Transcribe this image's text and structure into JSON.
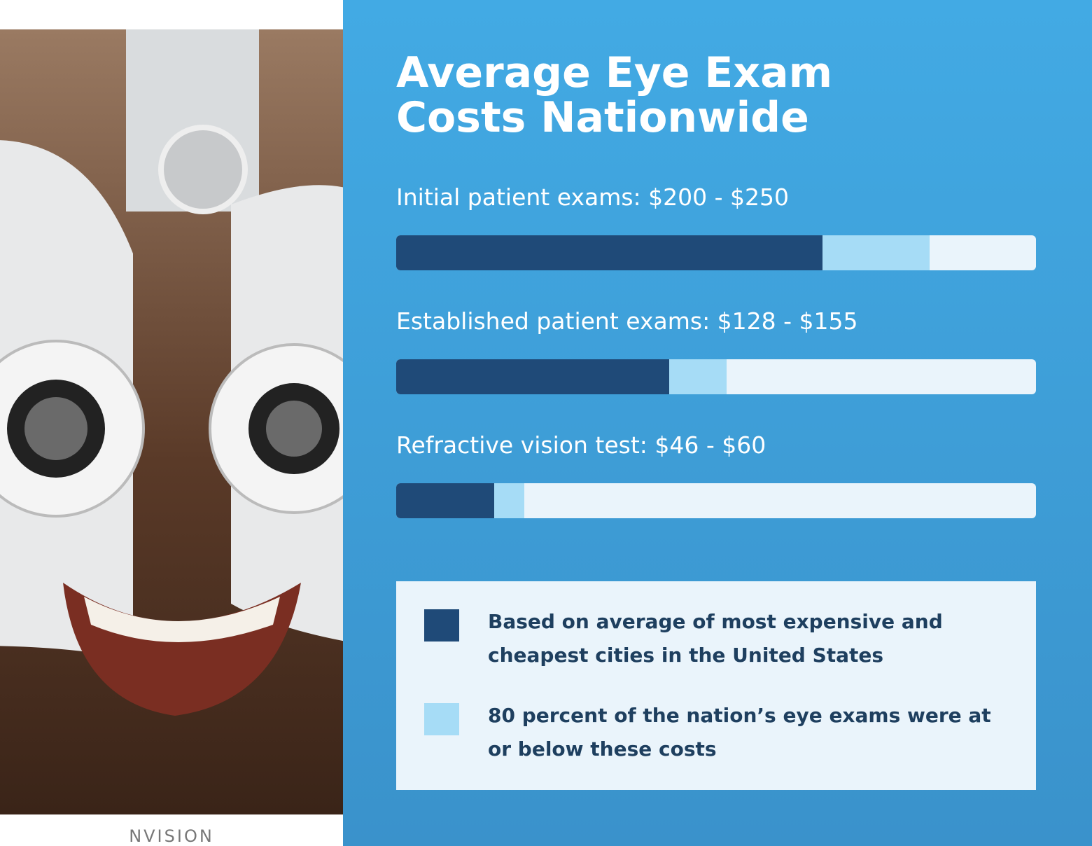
{
  "chart_data": {
    "type": "range-bar",
    "title": "Average Eye Exam Costs Nationwide",
    "categories": [
      "Initial patient exams: $200 - $250",
      "Established patient exams: $128 - $155",
      "Refractive vision test: $46 - $60"
    ],
    "series": [
      {
        "name": "80 percent of the nation’s eye exams were at or below these costs",
        "color": "#a6dcf6",
        "values": [
          250,
          155,
          60
        ]
      },
      {
        "name": "Based on average of most expensive and cheapest cities in the United States",
        "color": "#1f4a78",
        "values": [
          200,
          128,
          46
        ]
      }
    ],
    "xlim": [
      0,
      300
    ],
    "track_color": "#eaf4fb"
  },
  "brand": "NVISION"
}
